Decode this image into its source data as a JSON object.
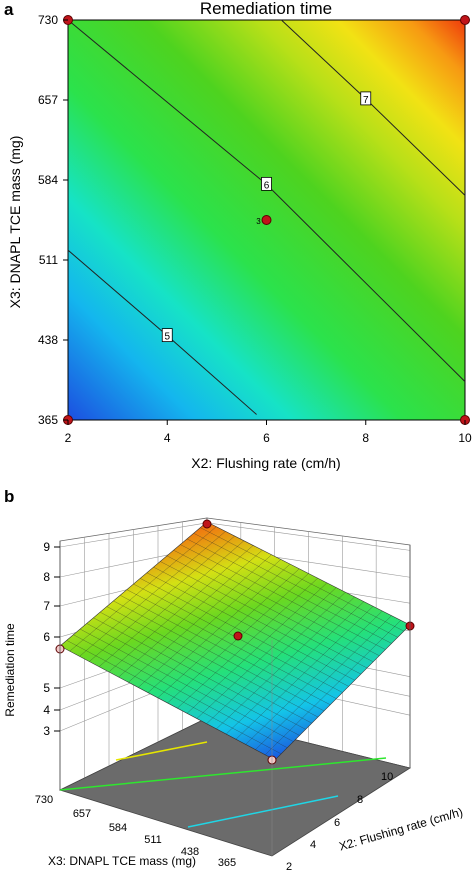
{
  "panels": {
    "a_label": "a",
    "b_label": "b"
  },
  "chart_data": [
    {
      "type": "heatmap",
      "title": "Remediation time",
      "xlabel": "X2: Flushing rate (cm/h)",
      "ylabel": "X3: DNAPL TCE mass (mg)",
      "x_ticks": [
        "2",
        "4",
        "6",
        "8",
        "10"
      ],
      "y_ticks": [
        "365",
        "438",
        "511",
        "584",
        "657",
        "730"
      ],
      "xlim": [
        2,
        10
      ],
      "ylim": [
        365,
        730
      ],
      "color_range": [
        4.0,
        8.5
      ],
      "colormap": "blue-cyan-green-yellow-orange-red",
      "contours": [
        {
          "label": "5",
          "value": 5,
          "points": [
            [
              2,
              520
            ],
            [
              4,
              442
            ],
            [
              5.8,
              370
            ]
          ]
        },
        {
          "label": "6",
          "value": 6,
          "points": [
            [
              2,
              730
            ],
            [
              6,
              580
            ],
            [
              10,
              400
            ]
          ]
        },
        {
          "label": "7",
          "value": 7,
          "points": [
            [
              6.3,
              730
            ],
            [
              8,
              658
            ],
            [
              10,
              570
            ]
          ]
        }
      ],
      "design_points": [
        {
          "x": 2,
          "y": 730,
          "label": ""
        },
        {
          "x": 10,
          "y": 730,
          "label": ""
        },
        {
          "x": 2,
          "y": 365,
          "label": ""
        },
        {
          "x": 10,
          "y": 365,
          "label": ""
        },
        {
          "x": 6,
          "y": 547.5,
          "label": "3"
        }
      ]
    },
    {
      "type": "surface",
      "zlabel": "Remediation time",
      "xlabel": "X3: DNAPL TCE mass (mg)",
      "ylabel": "X2: Flushing rate (cm/h)",
      "x_ticks": [
        "730",
        "657",
        "584",
        "511",
        "438",
        "365"
      ],
      "y_ticks": [
        "2",
        "4",
        "6",
        "8",
        "10"
      ],
      "z_ticks": [
        "3",
        "4",
        "5",
        "6",
        "7",
        "8",
        "9"
      ],
      "corner_values": {
        "mass730_rate2": 5.8,
        "mass730_rate10": 9.0,
        "mass365_rate2": 3.6,
        "mass365_rate10": 5.8
      },
      "center_value": 6.0
    }
  ]
}
